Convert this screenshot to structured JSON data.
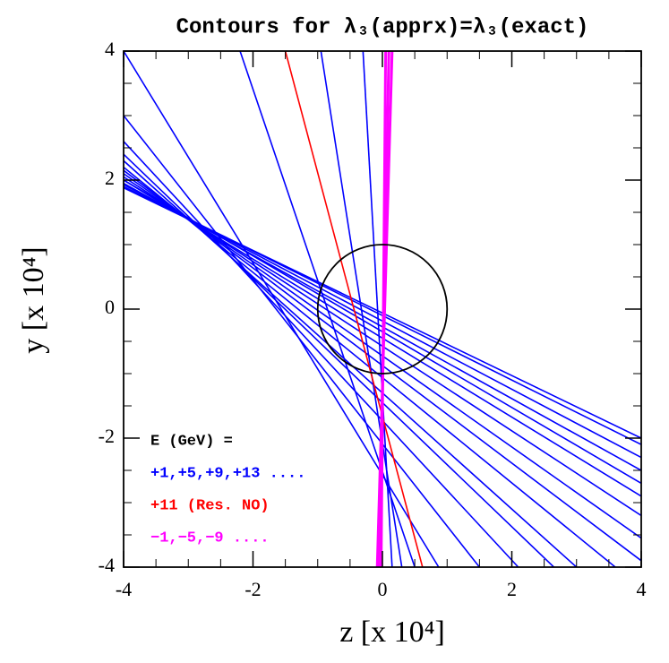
{
  "chart_data": {
    "type": "line",
    "title": "Contours for λ₃(apprx)=λ₃(exact)",
    "x_label": "z [x 10⁴]",
    "y_label": "y [x 10⁴]",
    "xlim": [
      -4,
      4
    ],
    "ylim": [
      -4,
      4
    ],
    "xticks": [
      -4,
      -2,
      0,
      2,
      4
    ],
    "yticks": [
      -4,
      -2,
      0,
      2,
      4
    ],
    "legend_title": "E (GeV) =",
    "circle": {
      "x": 0,
      "y": 0,
      "r": 1,
      "color": "#000000"
    },
    "series": [
      {
        "name": "+1,+5,+9,+13 ....",
        "color": "#0000ff",
        "lines": [
          {
            "x": [
              -4,
              0.87
            ],
            "y": [
              4,
              -4
            ]
          },
          {
            "x": [
              -4,
              1.5
            ],
            "y": [
              3.0,
              -4
            ]
          },
          {
            "x": [
              -4,
              2.1
            ],
            "y": [
              2.6,
              -4
            ]
          },
          {
            "x": [
              -4,
              2.65
            ],
            "y": [
              2.4,
              -4
            ]
          },
          {
            "x": [
              -4,
              3.0
            ],
            "y": [
              2.3,
              -4
            ]
          },
          {
            "x": [
              -4,
              3.6
            ],
            "y": [
              2.2,
              -4
            ]
          },
          {
            "x": [
              -4,
              4
            ],
            "y": [
              2.15,
              -3.9
            ]
          },
          {
            "x": [
              -4,
              4
            ],
            "y": [
              2.1,
              -3.55
            ]
          },
          {
            "x": [
              -4,
              4
            ],
            "y": [
              2.05,
              -3.2
            ]
          },
          {
            "x": [
              -4,
              4
            ],
            "y": [
              2.0,
              -2.9
            ]
          },
          {
            "x": [
              -4,
              4
            ],
            "y": [
              2.0,
              -2.7
            ]
          },
          {
            "x": [
              -4,
              4
            ],
            "y": [
              1.95,
              -2.5
            ]
          },
          {
            "x": [
              -4,
              4
            ],
            "y": [
              1.93,
              -2.3
            ]
          },
          {
            "x": [
              -4,
              4
            ],
            "y": [
              1.9,
              -2.1
            ]
          },
          {
            "x": [
              -4,
              4
            ],
            "y": [
              1.88,
              -2.0
            ]
          },
          {
            "x": [
              -2.2,
              0.5
            ],
            "y": [
              4,
              -4
            ]
          },
          {
            "x": [
              -0.95,
              0.3
            ],
            "y": [
              4,
              -4
            ]
          },
          {
            "x": [
              -0.3,
              0.15
            ],
            "y": [
              4,
              -4
            ]
          }
        ]
      },
      {
        "name": "+11 (Res. NO)",
        "color": "#ff0000",
        "lines": [
          {
            "x": [
              -1.5,
              0.62
            ],
            "y": [
              4,
              -4
            ]
          }
        ]
      },
      {
        "name": "−1,−5,−9 ....",
        "color": "#ff00ff",
        "lines": [
          {
            "x": [
              0.05,
              -0.02
            ],
            "y": [
              4,
              -4
            ]
          },
          {
            "x": [
              0.1,
              -0.05
            ],
            "y": [
              4,
              -4
            ]
          },
          {
            "x": [
              0.15,
              -0.08
            ],
            "y": [
              4,
              -4
            ]
          }
        ]
      }
    ]
  }
}
